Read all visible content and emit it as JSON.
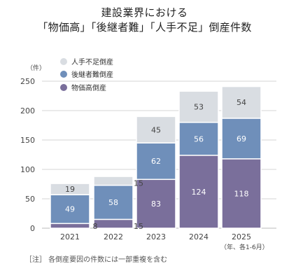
{
  "title_line1": "建設業界における",
  "title_line2": "「物価高」「後継者難」「人手不足」倒産件数",
  "unit_label": "（件）",
  "period_label": "（年、各1-6月）",
  "note": "［注］ 各倒産要因の件数には一部重複を含む",
  "colors": {
    "bukka": "#7a6f9b",
    "koukeisha": "#6f8fba",
    "hitode": "#d9dde2",
    "axis_text": "#444444",
    "grid": "#d6d6d6"
  },
  "chart_data": {
    "type": "bar",
    "stacked": true,
    "categories": [
      "2021",
      "2022",
      "2023",
      "2024",
      "2025"
    ],
    "series": [
      {
        "name": "物価高倒産",
        "values": [
          8,
          15,
          83,
          124,
          118
        ]
      },
      {
        "name": "後継者難倒産",
        "values": [
          49,
          58,
          62,
          56,
          69
        ]
      },
      {
        "name": "人手不足倒産",
        "values": [
          19,
          15,
          45,
          53,
          54
        ]
      }
    ],
    "yticks": [
      "0",
      "50",
      "100",
      "150",
      "200",
      "250"
    ],
    "ylim": [
      0,
      250
    ],
    "legend_order": [
      "人手不足倒産",
      "後継者難倒産",
      "物価高倒産"
    ],
    "legend_position": "top-left",
    "grid": true
  }
}
